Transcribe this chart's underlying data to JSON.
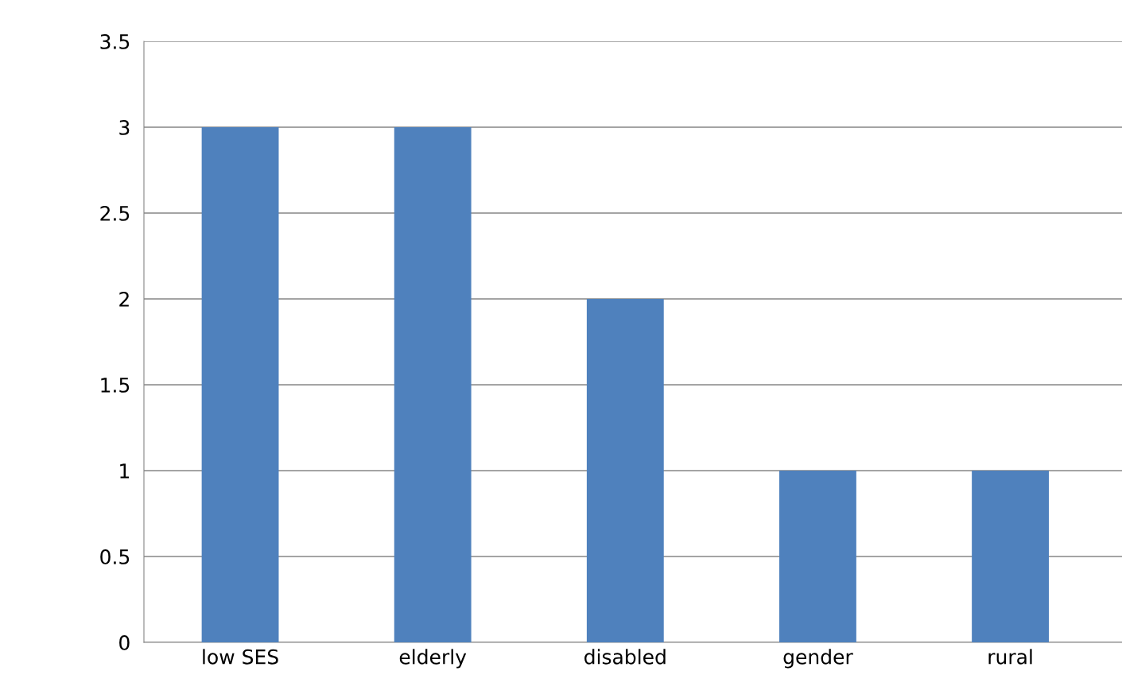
{
  "chart_data": {
    "type": "bar",
    "categories": [
      "low SES",
      "elderly",
      "disabled",
      "gender",
      "rural"
    ],
    "values": [
      3,
      3,
      2,
      1,
      1
    ],
    "color": "#4f81bd",
    "ylim": [
      0,
      3.5
    ],
    "yticks": [
      0,
      0.5,
      1,
      1.5,
      2,
      2.5,
      3,
      3.5
    ],
    "grid": "y"
  }
}
